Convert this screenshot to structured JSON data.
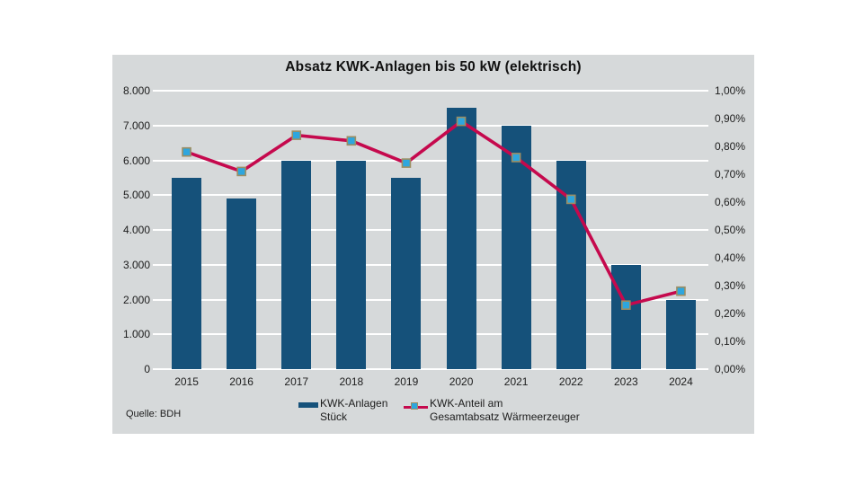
{
  "chart_data": {
    "type": "bar+line",
    "title": "Absatz KWK-Anlagen bis 50 kW (elektrisch)",
    "source": "Quelle: BDH",
    "categories": [
      "2015",
      "2016",
      "2017",
      "2018",
      "2019",
      "2020",
      "2021",
      "2022",
      "2023",
      "2024"
    ],
    "series": [
      {
        "name": "KWK-Anlagen Stück",
        "type": "bar",
        "axis": "left",
        "values": [
          5500,
          4900,
          6000,
          6000,
          5500,
          7500,
          7000,
          6000,
          3000,
          2000
        ]
      },
      {
        "name": "KWK-Anteil am Gesamtabsatz Wärmeerzeuger",
        "type": "line",
        "axis": "right",
        "values_percent": [
          0.78,
          0.71,
          0.84,
          0.82,
          0.74,
          0.89,
          0.76,
          0.61,
          0.23,
          0.28
        ]
      }
    ],
    "left_axis": {
      "min": 0,
      "max": 8000,
      "tick_labels": [
        "8.000",
        "7.000",
        "6.000",
        "5.000",
        "4.000",
        "3.000",
        "2.000",
        "1.000",
        "0"
      ]
    },
    "right_axis": {
      "min_label": "0,00%",
      "max_label": "1,00%",
      "tick_labels": [
        "1,00%",
        "0,90%",
        "0,80%",
        "0,70%",
        "0,60%",
        "0,50%",
        "0,40%",
        "0,30%",
        "0,20%",
        "0,10%",
        "0,00%"
      ]
    },
    "legend": [
      {
        "line1": "KWK-Anlagen",
        "line2": "Stück"
      },
      {
        "line1": "KWK-Anteil am",
        "line2": "Gesamtabsatz Wärmeerzeuger"
      }
    ],
    "grid": "on",
    "legend_position": "bottom-center",
    "colors": {
      "bar": "#15517a",
      "line": "#c5094d",
      "marker_fill": "#2ea6de",
      "marker_border": "#9c8e63",
      "panel_bg": "#d6d9da",
      "grid": "#ffffff"
    }
  }
}
